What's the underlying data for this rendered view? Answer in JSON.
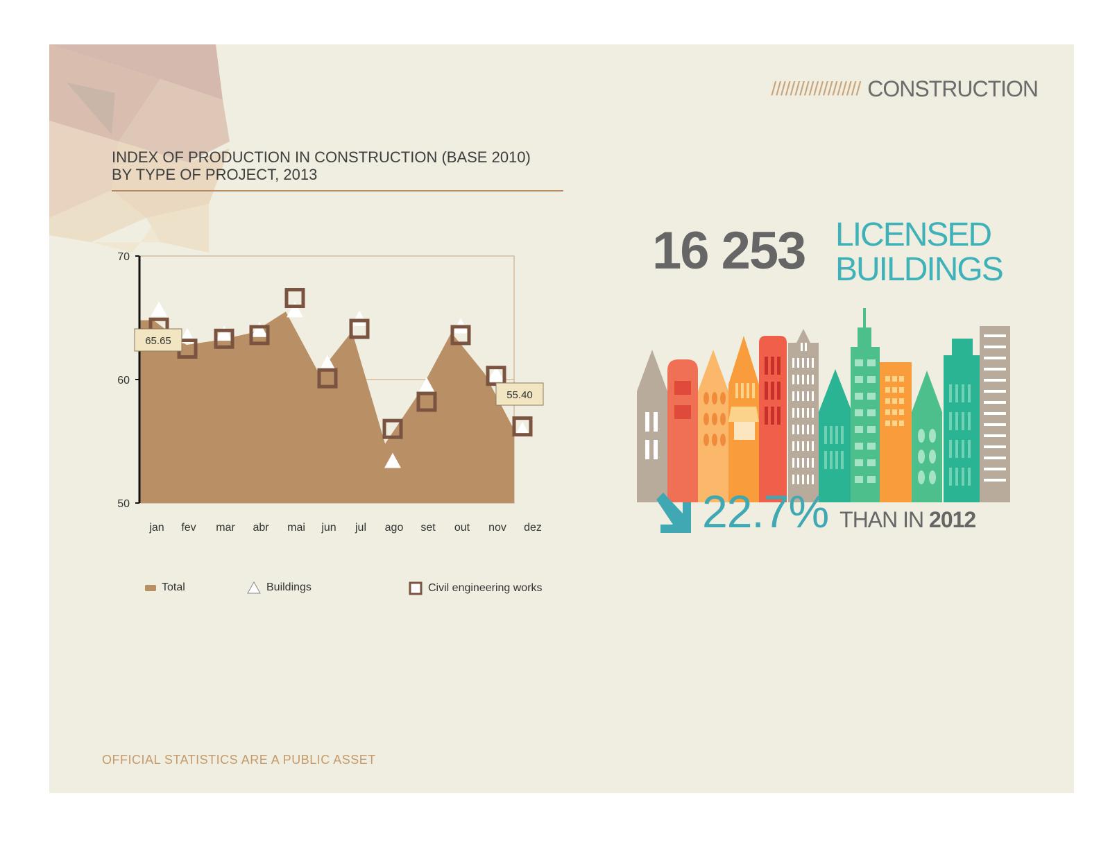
{
  "section": {
    "hatch": "///////////////////",
    "title": "CONSTRUCTION"
  },
  "chart_data": {
    "type": "area",
    "title_line1": "INDEX OF PRODUCTION IN CONSTRUCTION (BASE 2010)",
    "title_line2": "BY TYPE OF PROJECT, 2013",
    "categories": [
      "jan",
      "fev",
      "mar",
      "abr",
      "mai",
      "jun",
      "jul",
      "ago",
      "set",
      "out",
      "nov",
      "dez"
    ],
    "ylim": [
      50,
      70
    ],
    "yticks": [
      50,
      60,
      70
    ],
    "series": [
      {
        "name": "Total",
        "style": "area",
        "color": "#b98f66",
        "values": [
          64.8,
          62.8,
          63.2,
          63.8,
          65.5,
          60.5,
          63.9,
          54.8,
          58.8,
          63.8,
          60.5,
          55.4
        ]
      },
      {
        "name": "Buildings",
        "style": "triangle-marker",
        "color": "#ffffff",
        "values": [
          65.65,
          63.5,
          63.7,
          64.0,
          65.6,
          61.3,
          64.9,
          53.4,
          59.5,
          64.3,
          60.4,
          55.9
        ]
      },
      {
        "name": "Civil engineering works",
        "style": "square-marker",
        "color": "#7a5440",
        "values": [
          64.2,
          62.5,
          63.3,
          63.6,
          66.6,
          60.1,
          64.1,
          56.0,
          58.2,
          63.6,
          60.3,
          56.2
        ]
      }
    ],
    "callouts": [
      {
        "category": "jan",
        "label": "65.65"
      },
      {
        "category": "dez",
        "label": "55.40"
      }
    ],
    "grid": true,
    "legend": "bottom"
  },
  "legend": {
    "total": "Total",
    "buildings": "Buildings",
    "civil": "Civil engineering works"
  },
  "highlight": {
    "number": "16 253",
    "label_line1": "LICENSED",
    "label_line2": "BUILDINGS",
    "change": "22.7%",
    "change_direction": "down",
    "than_prefix": "THAN IN",
    "than_year": "2012"
  },
  "footer": "OFFICIAL STATISTICS ARE A PUBLIC ASSET",
  "colors": {
    "accent": "#3fb1b9",
    "brown": "#b98f66",
    "dark_brown": "#7a5440",
    "panel": "#efeee0"
  }
}
